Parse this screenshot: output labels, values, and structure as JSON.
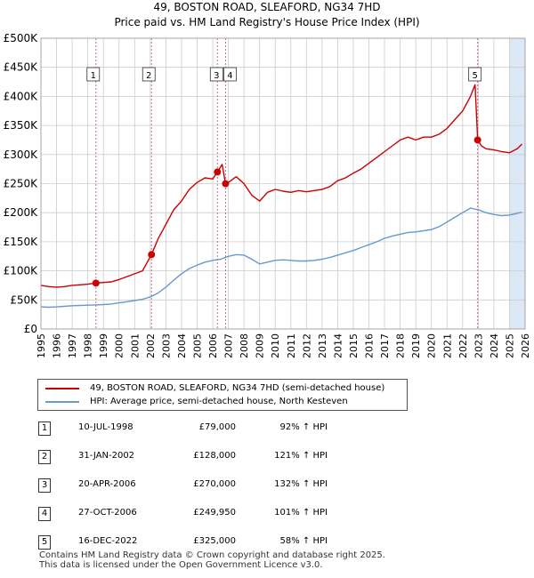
{
  "header": {
    "title_line1": "49, BOSTON ROAD, SLEAFORD, NG34 7HD",
    "title_line2": "Price paid vs. HM Land Registry's House Price Index (HPI)"
  },
  "colors": {
    "property": "#cc0000",
    "hpi": "#6699cc",
    "highlight": "#dde8f6",
    "grid": "#cccccc",
    "marker_line": "#cc6688"
  },
  "chart_data": {
    "type": "line",
    "title": "49, BOSTON ROAD, SLEAFORD, NG34 7HD — Price paid vs. HM Land Registry's House Price Index (HPI)",
    "xlabel": "",
    "ylabel": "",
    "xlim": [
      1995,
      2026
    ],
    "ylim": [
      0,
      500000
    ],
    "y_ticks": [
      {
        "value": 0,
        "label": "£0"
      },
      {
        "value": 50000,
        "label": "£50K"
      },
      {
        "value": 100000,
        "label": "£100K"
      },
      {
        "value": 150000,
        "label": "£150K"
      },
      {
        "value": 200000,
        "label": "£200K"
      },
      {
        "value": 250000,
        "label": "£250K"
      },
      {
        "value": 300000,
        "label": "£300K"
      },
      {
        "value": 350000,
        "label": "£350K"
      },
      {
        "value": 400000,
        "label": "£400K"
      },
      {
        "value": 450000,
        "label": "£450K"
      },
      {
        "value": 500000,
        "label": "£500K"
      }
    ],
    "x_ticks": [
      "1995",
      "1996",
      "1997",
      "1998",
      "1999",
      "2000",
      "2001",
      "2002",
      "2003",
      "2004",
      "2005",
      "2006",
      "2007",
      "2008",
      "2009",
      "2010",
      "2011",
      "2012",
      "2013",
      "2014",
      "2015",
      "2016",
      "2017",
      "2018",
      "2019",
      "2020",
      "2021",
      "2022",
      "2023",
      "2024",
      "2025",
      "2026"
    ],
    "highlight_ranges": [
      [
        1998.52,
        1998.52
      ],
      [
        2025.0,
        2026.0
      ]
    ],
    "series": [
      {
        "name": "49, BOSTON ROAD, SLEAFORD, NG34 7HD (semi-detached house)",
        "x": [
          1995.0,
          1995.5,
          1996.0,
          1996.5,
          1997.0,
          1997.5,
          1998.0,
          1998.52,
          1999.0,
          1999.5,
          2000.0,
          2000.5,
          2001.0,
          2001.5,
          2002.08,
          2002.5,
          2003.0,
          2003.5,
          2004.0,
          2004.5,
          2005.0,
          2005.5,
          2006.0,
          2006.3,
          2006.6,
          2006.82,
          2007.0,
          2007.5,
          2008.0,
          2008.5,
          2009.0,
          2009.5,
          2010.0,
          2010.5,
          2011.0,
          2011.5,
          2012.0,
          2012.5,
          2013.0,
          2013.5,
          2014.0,
          2014.5,
          2015.0,
          2015.5,
          2016.0,
          2016.5,
          2017.0,
          2017.5,
          2018.0,
          2018.5,
          2019.0,
          2019.5,
          2020.0,
          2020.5,
          2021.0,
          2021.5,
          2022.0,
          2022.5,
          2022.8,
          2022.96,
          2023.2,
          2023.5,
          2024.0,
          2024.5,
          2025.0,
          2025.5,
          2025.8
        ],
        "values": [
          75000,
          73000,
          72000,
          73000,
          75000,
          76000,
          77000,
          79000,
          80000,
          81000,
          85000,
          90000,
          95000,
          100000,
          128000,
          155000,
          180000,
          205000,
          220000,
          240000,
          252000,
          260000,
          258000,
          270000,
          283000,
          249950,
          252000,
          262000,
          250000,
          230000,
          220000,
          235000,
          240000,
          237000,
          235000,
          238000,
          236000,
          238000,
          240000,
          245000,
          255000,
          260000,
          268000,
          275000,
          285000,
          295000,
          305000,
          315000,
          325000,
          330000,
          325000,
          330000,
          330000,
          335000,
          345000,
          360000,
          375000,
          400000,
          420000,
          325000,
          315000,
          310000,
          308000,
          305000,
          303000,
          310000,
          318000
        ]
      },
      {
        "name": "HPI: Average price, semi-detached house, North Kesteven",
        "x": [
          1995.0,
          1995.5,
          1996.0,
          1996.5,
          1997.0,
          1997.5,
          1998.0,
          1998.5,
          1999.0,
          1999.5,
          2000.0,
          2000.5,
          2001.0,
          2001.5,
          2002.0,
          2002.5,
          2003.0,
          2003.5,
          2004.0,
          2004.5,
          2005.0,
          2005.5,
          2006.0,
          2006.5,
          2007.0,
          2007.5,
          2008.0,
          2008.5,
          2009.0,
          2009.5,
          2010.0,
          2010.5,
          2011.0,
          2011.5,
          2012.0,
          2012.5,
          2013.0,
          2013.5,
          2014.0,
          2014.5,
          2015.0,
          2015.5,
          2016.0,
          2016.5,
          2017.0,
          2017.5,
          2018.0,
          2018.5,
          2019.0,
          2019.5,
          2020.0,
          2020.5,
          2021.0,
          2021.5,
          2022.0,
          2022.5,
          2023.0,
          2023.5,
          2024.0,
          2024.5,
          2025.0,
          2025.5,
          2025.8
        ],
        "values": [
          38000,
          37500,
          38000,
          39000,
          40000,
          40500,
          41000,
          41500,
          42000,
          43000,
          45000,
          47000,
          49000,
          51000,
          55000,
          62000,
          72000,
          84000,
          95000,
          104000,
          110000,
          115000,
          118000,
          120000,
          125000,
          128000,
          127000,
          120000,
          112000,
          115000,
          118000,
          119000,
          118000,
          117000,
          117000,
          118000,
          120000,
          123000,
          127000,
          131000,
          135000,
          140000,
          145000,
          150000,
          156000,
          160000,
          163000,
          166000,
          167000,
          169000,
          171000,
          176000,
          184000,
          192000,
          200000,
          208000,
          205000,
          200000,
          197000,
          195000,
          196000,
          199000,
          201000
        ]
      }
    ],
    "annotations": [
      {
        "id": "1",
        "x": 1998.52,
        "price": 79000
      },
      {
        "id": "2",
        "x": 2002.08,
        "price": 128000
      },
      {
        "id": "3",
        "x": 2006.3,
        "price": 270000
      },
      {
        "id": "4",
        "x": 2006.82,
        "price": 249950
      },
      {
        "id": "5",
        "x": 2022.96,
        "price": 325000
      }
    ]
  },
  "legend": {
    "property_label": "49, BOSTON ROAD, SLEAFORD, NG34 7HD (semi-detached house)",
    "hpi_label": "HPI: Average price, semi-detached house, North Kesteven"
  },
  "transactions": [
    {
      "num": "1",
      "date": "10-JUL-1998",
      "price": "£79,000",
      "hpi": "92% ↑ HPI"
    },
    {
      "num": "2",
      "date": "31-JAN-2002",
      "price": "£128,000",
      "hpi": "121% ↑ HPI"
    },
    {
      "num": "3",
      "date": "20-APR-2006",
      "price": "£270,000",
      "hpi": "132% ↑ HPI"
    },
    {
      "num": "4",
      "date": "27-OCT-2006",
      "price": "£249,950",
      "hpi": "101% ↑ HPI"
    },
    {
      "num": "5",
      "date": "16-DEC-2022",
      "price": "£325,000",
      "hpi": "58% ↑ HPI"
    }
  ],
  "footer": {
    "line1": "Contains HM Land Registry data © Crown copyright and database right 2025.",
    "line2": "This data is licensed under the Open Government Licence v3.0."
  }
}
